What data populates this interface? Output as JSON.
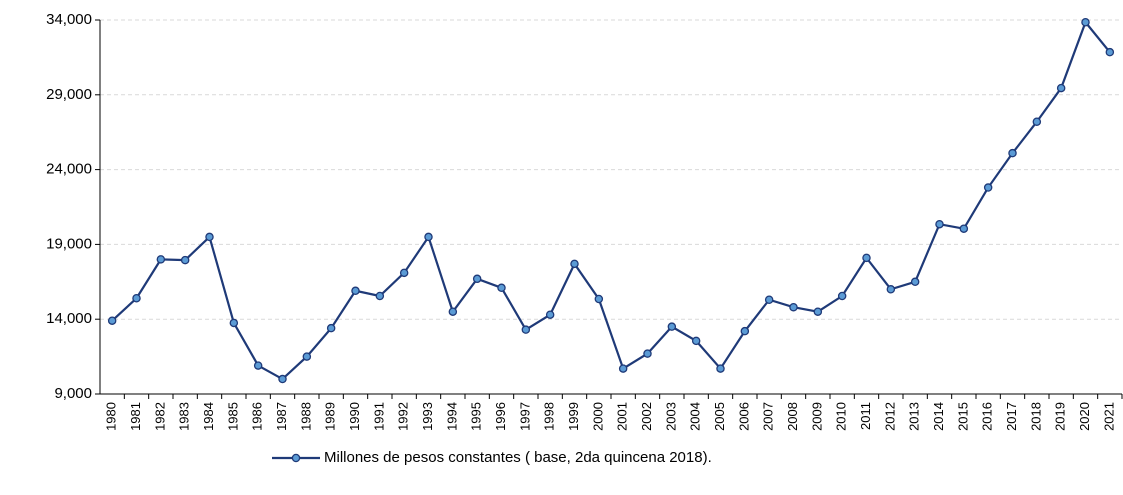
{
  "chart_data": {
    "type": "line",
    "categories": [
      "1980",
      "1981",
      "1982",
      "1983",
      "1984",
      "1985",
      "1986",
      "1987",
      "1988",
      "1989",
      "1990",
      "1991",
      "1992",
      "1993",
      "1994",
      "1995",
      "1996",
      "1997",
      "1998",
      "1999",
      "2000",
      "2001",
      "2002",
      "2003",
      "2004",
      "2005",
      "2006",
      "2007",
      "2008",
      "2009",
      "2010",
      "2011",
      "2012",
      "2013",
      "2014",
      "2015",
      "2016",
      "2017",
      "2018",
      "2019",
      "2020",
      "2021"
    ],
    "series": [
      {
        "name": "Millones de pesos constantes ( base, 2da quincena 2018).",
        "color": "#1f3a78",
        "marker_color": "#5b9bd5",
        "values": [
          13900,
          15400,
          18000,
          17950,
          19500,
          13750,
          10900,
          10000,
          11500,
          13400,
          15900,
          15550,
          17100,
          19500,
          14500,
          16700,
          16100,
          13300,
          14300,
          17700,
          15350,
          10700,
          11700,
          13500,
          12550,
          10700,
          13200,
          15300,
          14800,
          14500,
          15550,
          18100,
          16000,
          16500,
          20350,
          20050,
          22800,
          25100,
          27200,
          29450,
          33850,
          31850
        ]
      }
    ],
    "ylim": [
      9000,
      34000
    ],
    "yticks": [
      {
        "value": 9000,
        "label": "9,000"
      },
      {
        "value": 14000,
        "label": "14,000"
      },
      {
        "value": 19000,
        "label": "19,000"
      },
      {
        "value": 24000,
        "label": "24,000"
      },
      {
        "value": 29000,
        "label": "29,000"
      },
      {
        "value": 34000,
        "label": "34,000"
      }
    ],
    "grid": true,
    "legend": "bottom"
  }
}
